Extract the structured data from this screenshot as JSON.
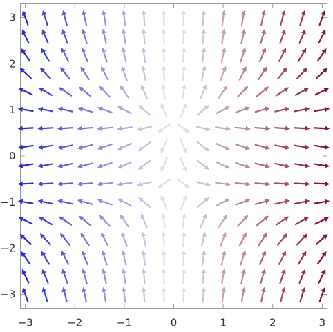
{
  "chart_data": {
    "type": "vector_field",
    "title": "",
    "xlabel": "",
    "ylabel": "",
    "xlim": [
      -3.1,
      3.1
    ],
    "ylim": [
      -3.3,
      3.3
    ],
    "grid": false,
    "legend": "none",
    "x_ticks": [
      {
        "value": -3,
        "label": "−3"
      },
      {
        "value": -2,
        "label": "−2"
      },
      {
        "value": -1,
        "label": "−1"
      },
      {
        "value": 0,
        "label": "0"
      },
      {
        "value": 1,
        "label": "1"
      },
      {
        "value": 2,
        "label": "2"
      },
      {
        "value": 3,
        "label": "3"
      }
    ],
    "y_ticks": [
      {
        "value": 3,
        "label": "3"
      },
      {
        "value": 2,
        "label": "2"
      },
      {
        "value": 1,
        "label": "1"
      },
      {
        "value": 0,
        "label": "0"
      },
      {
        "value": -1,
        "label": "−1"
      },
      {
        "value": -2,
        "label": "−2"
      },
      {
        "value": -3,
        "label": "−3"
      }
    ],
    "sample_x": [
      -3,
      -2.6,
      -2.2,
      -1.8,
      -1.4,
      -1.0,
      -0.6,
      -0.2,
      0.2,
      0.6,
      1.0,
      1.4,
      1.8,
      2.2,
      2.6,
      3
    ],
    "sample_y": [
      3,
      2.6,
      2.2,
      1.8,
      1.4,
      1.0,
      0.6,
      0.2,
      -0.2,
      -0.6,
      -1.0,
      -1.4,
      -1.8,
      -2.2,
      -2.6,
      -3
    ],
    "field": {
      "u": "x",
      "v": "y^2 - 0.5"
    },
    "color_scale": {
      "by": "x",
      "low": "#2a2ad0",
      "mid": "#e8ece8",
      "high": "#8a1424"
    }
  }
}
